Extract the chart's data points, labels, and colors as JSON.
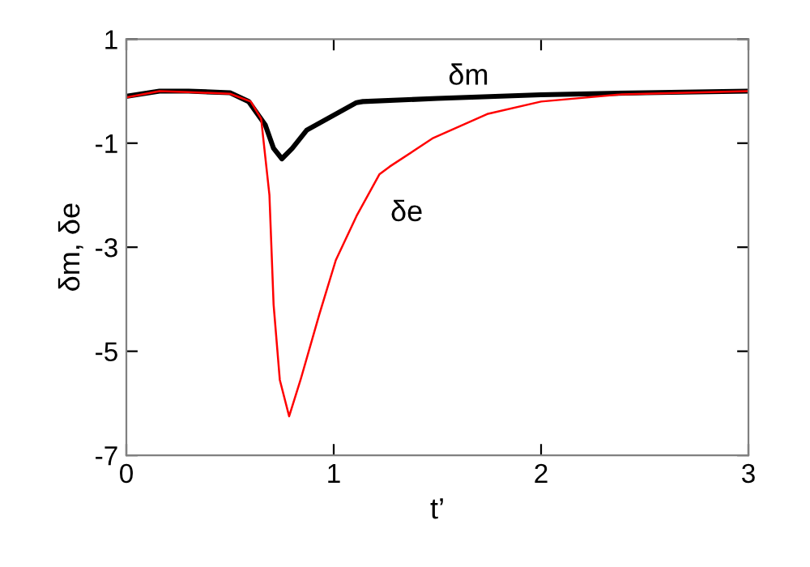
{
  "chart_data": {
    "type": "line",
    "xlabel": "t’",
    "ylabel": "δm, δe",
    "xlim": [
      0,
      3
    ],
    "ylim": [
      -7,
      1
    ],
    "xticks": [
      0,
      1,
      2,
      3
    ],
    "yticks": [
      {
        "value": 1,
        "label": "1"
      },
      {
        "value": -1,
        "label": "-1"
      },
      {
        "value": -3,
        "label": "-3"
      },
      {
        "value": -5,
        "label": "-5"
      },
      {
        "value": -7,
        "label": "-7"
      }
    ],
    "grid": false,
    "legend": false,
    "series": [
      {
        "name": "δm",
        "color": "#000000",
        "x": [
          0,
          0.16,
          0.3,
          0.5,
          0.59,
          0.67,
          0.71,
          0.75,
          0.8,
          0.87,
          0.96,
          1.11,
          1.14,
          1.5,
          2.0,
          2.5,
          3.0
        ],
        "values": [
          -0.1,
          0.0,
          0.0,
          -0.03,
          -0.2,
          -0.65,
          -1.1,
          -1.3,
          -1.1,
          -0.75,
          -0.55,
          -0.22,
          -0.2,
          -0.14,
          -0.07,
          -0.03,
          0.0
        ]
      },
      {
        "name": "δe",
        "color": "#ff0000",
        "x": [
          0,
          0.16,
          0.3,
          0.5,
          0.6,
          0.65,
          0.69,
          0.71,
          0.74,
          0.785,
          0.84,
          0.93,
          1.01,
          1.11,
          1.22,
          1.27,
          1.48,
          1.74,
          2.0,
          2.39,
          3.0
        ],
        "values": [
          -0.12,
          0.0,
          -0.02,
          -0.05,
          -0.2,
          -0.53,
          -2.0,
          -4.1,
          -5.55,
          -6.25,
          -5.55,
          -4.3,
          -3.25,
          -2.4,
          -1.6,
          -1.45,
          -0.9,
          -0.44,
          -0.2,
          -0.06,
          0.0
        ]
      }
    ]
  }
}
